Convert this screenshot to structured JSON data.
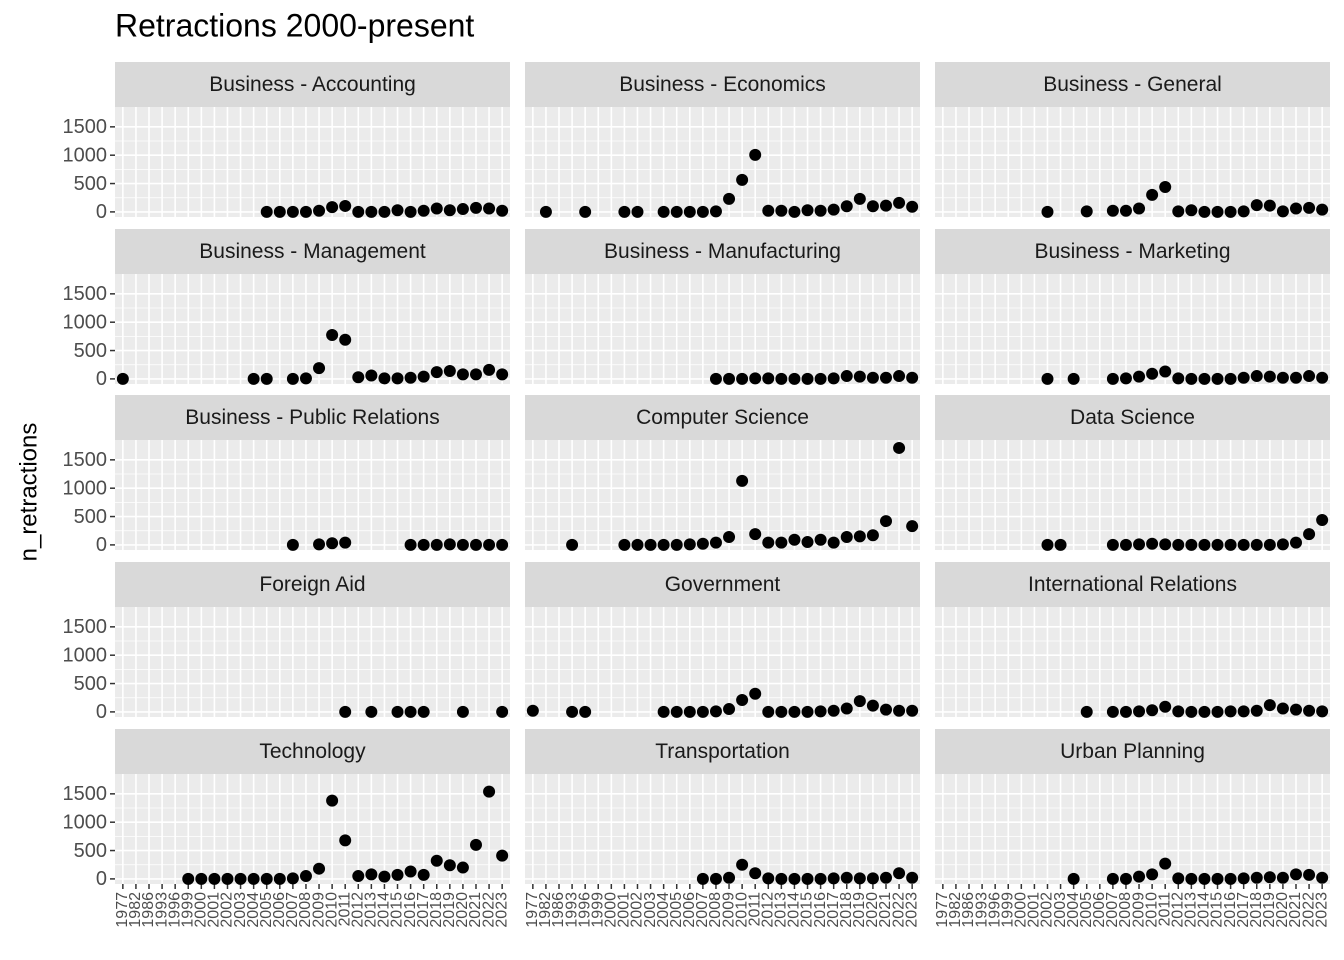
{
  "chart_data": {
    "type": "scatter",
    "title": "Retractions 2000-present",
    "y_label": "n_retractions",
    "color": "#000000",
    "grid": true,
    "categories": [
      "1977",
      "1982",
      "1986",
      "1993",
      "1996",
      "1999",
      "2000",
      "2001",
      "2002",
      "2003",
      "2004",
      "2005",
      "2006",
      "2007",
      "2008",
      "2009",
      "2010",
      "2011",
      "2012",
      "2013",
      "2014",
      "2015",
      "2016",
      "2017",
      "2018",
      "2019",
      "2020",
      "2021",
      "2022",
      "2023"
    ],
    "ylim": [
      -90,
      1850
    ],
    "yticks": [
      0,
      500,
      1000,
      1500
    ],
    "facets": [
      {
        "name": "Business - Accounting",
        "values": [
          null,
          null,
          null,
          null,
          null,
          null,
          null,
          null,
          null,
          null,
          null,
          0,
          0,
          0,
          0,
          20,
          85,
          105,
          0,
          0,
          0,
          30,
          0,
          20,
          60,
          30,
          50,
          70,
          60,
          20
        ]
      },
      {
        "name": "Business - Economics",
        "values": [
          null,
          0,
          null,
          null,
          0,
          null,
          null,
          0,
          0,
          null,
          0,
          0,
          0,
          0,
          10,
          230,
          565,
          1005,
          20,
          20,
          0,
          30,
          20,
          40,
          100,
          230,
          100,
          110,
          160,
          90
        ]
      },
      {
        "name": "Business - General",
        "values": [
          null,
          null,
          null,
          null,
          null,
          null,
          null,
          null,
          0,
          null,
          null,
          10,
          null,
          20,
          20,
          60,
          300,
          440,
          10,
          30,
          0,
          0,
          0,
          10,
          120,
          110,
          10,
          60,
          70,
          40
        ]
      },
      {
        "name": "Business - Management",
        "values": [
          0,
          null,
          null,
          null,
          null,
          null,
          null,
          null,
          null,
          null,
          0,
          0,
          null,
          0,
          10,
          190,
          775,
          690,
          30,
          60,
          10,
          10,
          20,
          40,
          120,
          140,
          80,
          80,
          160,
          80
        ]
      },
      {
        "name": "Business - Manufacturing",
        "values": [
          null,
          null,
          null,
          null,
          null,
          null,
          null,
          null,
          null,
          null,
          null,
          null,
          null,
          null,
          0,
          0,
          0,
          10,
          10,
          0,
          0,
          0,
          0,
          10,
          50,
          40,
          20,
          20,
          50,
          20
        ]
      },
      {
        "name": "Business - Marketing",
        "values": [
          null,
          null,
          null,
          null,
          null,
          null,
          null,
          null,
          0,
          null,
          0,
          null,
          null,
          0,
          10,
          40,
          90,
          130,
          10,
          0,
          0,
          0,
          0,
          20,
          50,
          40,
          20,
          20,
          50,
          20
        ]
      },
      {
        "name": "Business - Public Relations",
        "values": [
          null,
          null,
          null,
          null,
          null,
          null,
          null,
          null,
          null,
          null,
          null,
          null,
          null,
          0,
          null,
          10,
          30,
          40,
          null,
          null,
          null,
          null,
          0,
          0,
          0,
          10,
          0,
          0,
          0,
          0
        ]
      },
      {
        "name": "Computer Science",
        "values": [
          null,
          null,
          null,
          0,
          null,
          null,
          null,
          0,
          0,
          0,
          0,
          0,
          10,
          20,
          40,
          140,
          1130,
          190,
          40,
          40,
          90,
          50,
          90,
          40,
          140,
          150,
          170,
          420,
          1710,
          330
        ]
      },
      {
        "name": "Data Science",
        "values": [
          null,
          null,
          null,
          null,
          null,
          null,
          null,
          null,
          0,
          0,
          null,
          null,
          null,
          0,
          0,
          10,
          20,
          10,
          0,
          0,
          0,
          0,
          0,
          0,
          0,
          0,
          10,
          40,
          190,
          440
        ]
      },
      {
        "name": "Foreign Aid",
        "values": [
          null,
          null,
          null,
          null,
          null,
          null,
          null,
          null,
          null,
          null,
          null,
          null,
          null,
          null,
          null,
          null,
          null,
          0,
          null,
          0,
          null,
          0,
          0,
          0,
          null,
          null,
          0,
          null,
          null,
          0
        ]
      },
      {
        "name": "Government",
        "values": [
          20,
          null,
          null,
          0,
          0,
          null,
          null,
          null,
          null,
          null,
          0,
          0,
          0,
          0,
          10,
          50,
          210,
          320,
          0,
          0,
          0,
          0,
          10,
          20,
          60,
          190,
          110,
          40,
          20,
          20
        ]
      },
      {
        "name": "International Relations",
        "values": [
          null,
          null,
          null,
          null,
          null,
          null,
          null,
          null,
          null,
          null,
          null,
          0,
          null,
          0,
          0,
          10,
          30,
          90,
          10,
          0,
          0,
          0,
          10,
          10,
          20,
          120,
          60,
          40,
          20,
          10
        ]
      },
      {
        "name": "Technology",
        "values": [
          null,
          null,
          null,
          null,
          null,
          0,
          0,
          0,
          0,
          0,
          0,
          0,
          0,
          10,
          50,
          180,
          1380,
          680,
          50,
          80,
          40,
          70,
          130,
          70,
          320,
          240,
          200,
          600,
          1540,
          410
        ]
      },
      {
        "name": "Transportation",
        "values": [
          null,
          null,
          null,
          null,
          null,
          null,
          null,
          null,
          null,
          null,
          null,
          null,
          null,
          0,
          0,
          20,
          250,
          100,
          10,
          0,
          0,
          0,
          0,
          10,
          20,
          10,
          10,
          20,
          100,
          20
        ]
      },
      {
        "name": "Urban Planning",
        "values": [
          null,
          null,
          null,
          null,
          null,
          null,
          null,
          null,
          null,
          null,
          0,
          null,
          null,
          0,
          0,
          40,
          80,
          270,
          10,
          0,
          0,
          0,
          0,
          10,
          20,
          30,
          20,
          80,
          70,
          20
        ]
      }
    ]
  }
}
